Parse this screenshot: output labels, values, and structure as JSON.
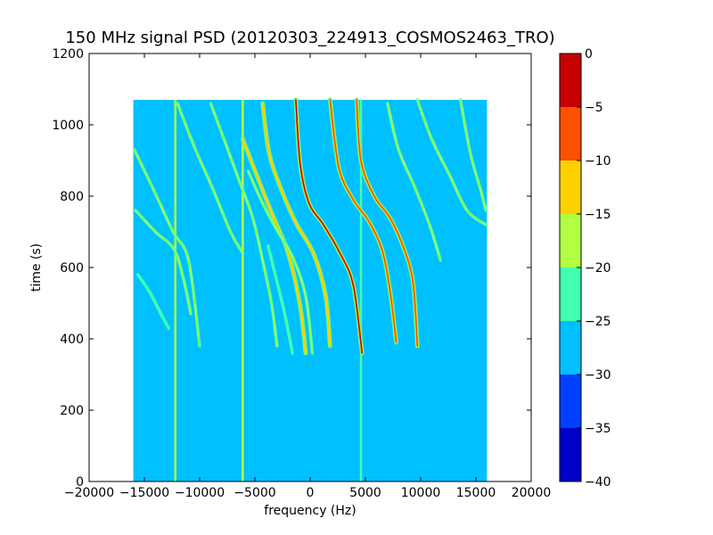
{
  "chart_data": {
    "type": "heatmap",
    "title": "150 MHz signal PSD (20120303_224913_COSMOS2463_TRO)",
    "xlabel": "frequency (Hz)",
    "ylabel": "time (s)",
    "xlim": [
      -20000,
      20000
    ],
    "ylim": [
      0,
      1200
    ],
    "x_ticks": [
      -20000,
      -15000,
      -10000,
      -5000,
      0,
      5000,
      10000,
      15000,
      20000
    ],
    "x_tick_labels": [
      "−20000",
      "−15000",
      "−10000",
      "−5000",
      "0",
      "5000",
      "10000",
      "15000",
      "20000"
    ],
    "y_ticks": [
      0,
      200,
      400,
      600,
      800,
      1000,
      1200
    ],
    "y_tick_labels": [
      "0",
      "200",
      "400",
      "600",
      "800",
      "1000",
      "1200"
    ],
    "data_extent": {
      "x": [
        -16000,
        16000
      ],
      "y": [
        0,
        1070
      ]
    },
    "background_level": -27.5,
    "colorbar": {
      "levels": [
        -40,
        -35,
        -30,
        -25,
        -20,
        -15,
        -10,
        -5,
        0
      ],
      "tick_labels": [
        "−40",
        "−35",
        "−30",
        "−25",
        "−20",
        "−15",
        "−10",
        "−5",
        "0"
      ],
      "colors": [
        "#0000c8",
        "#0040ff",
        "#00c0ff",
        "#40ffb0",
        "#b0ff40",
        "#ffd000",
        "#ff5000",
        "#c80000"
      ]
    },
    "vertical_lines": [
      {
        "freq": -12200,
        "from": 0,
        "to": 1070,
        "level": -20
      },
      {
        "freq": -6100,
        "from": 0,
        "to": 1070,
        "level": -20
      },
      {
        "freq": 4600,
        "from": 0,
        "to": 1070,
        "level": -22
      }
    ],
    "traces": [
      {
        "name": "t1",
        "points": [
          [
            -15900,
            930
          ],
          [
            -14200,
            820
          ],
          [
            -12400,
            700
          ],
          [
            -11000,
            620
          ],
          [
            -10000,
            380
          ]
        ],
        "level": -20
      },
      {
        "name": "t2",
        "points": [
          [
            -15800,
            760
          ],
          [
            -14000,
            700
          ],
          [
            -12300,
            650
          ],
          [
            -11400,
            560
          ],
          [
            -10800,
            470
          ]
        ],
        "level": -20
      },
      {
        "name": "t3",
        "points": [
          [
            -15600,
            580
          ],
          [
            -14500,
            530
          ],
          [
            -13500,
            470
          ],
          [
            -12800,
            430
          ]
        ],
        "level": -22
      },
      {
        "name": "t4",
        "points": [
          [
            -12000,
            1060
          ],
          [
            -10500,
            940
          ],
          [
            -8800,
            820
          ],
          [
            -7200,
            700
          ],
          [
            -6100,
            640
          ]
        ],
        "level": -20
      },
      {
        "name": "t5",
        "points": [
          [
            -9000,
            1060
          ],
          [
            -7800,
            960
          ],
          [
            -6500,
            850
          ],
          [
            -5200,
            740
          ],
          [
            -4300,
            620
          ],
          [
            -3500,
            500
          ],
          [
            -3000,
            380
          ]
        ],
        "level": -20
      },
      {
        "name": "t6",
        "points": [
          [
            -6100,
            960
          ],
          [
            -4600,
            840
          ],
          [
            -3300,
            740
          ],
          [
            -2200,
            660
          ],
          [
            -1400,
            570
          ],
          [
            -800,
            470
          ],
          [
            -400,
            360
          ]
        ],
        "level": -15
      },
      {
        "name": "t7",
        "points": [
          [
            -4300,
            1060
          ],
          [
            -3700,
            920
          ],
          [
            -2500,
            810
          ],
          [
            -1200,
            720
          ],
          [
            300,
            640
          ],
          [
            1400,
            520
          ],
          [
            1800,
            380
          ]
        ],
        "level": -15
      },
      {
        "name": "t8",
        "points": [
          [
            -1300,
            1070
          ],
          [
            -900,
            890
          ],
          [
            -100,
            780
          ],
          [
            1200,
            720
          ],
          [
            2700,
            640
          ],
          [
            3900,
            550
          ],
          [
            4700,
            360
          ]
        ],
        "level": -5
      },
      {
        "name": "t9",
        "points": [
          [
            -5600,
            870
          ],
          [
            -4300,
            780
          ],
          [
            -3100,
            710
          ],
          [
            -1600,
            630
          ],
          [
            -400,
            520
          ],
          [
            200,
            360
          ]
        ],
        "level": -20
      },
      {
        "name": "t10",
        "points": [
          [
            1800,
            1070
          ],
          [
            2600,
            880
          ],
          [
            3900,
            790
          ],
          [
            5300,
            730
          ],
          [
            6500,
            650
          ],
          [
            7200,
            540
          ],
          [
            7800,
            390
          ]
        ],
        "level": -10
      },
      {
        "name": "t11",
        "points": [
          [
            4200,
            1070
          ],
          [
            4600,
            900
          ],
          [
            5800,
            800
          ],
          [
            7200,
            740
          ],
          [
            8400,
            660
          ],
          [
            9300,
            560
          ],
          [
            9700,
            380
          ]
        ],
        "level": -10
      },
      {
        "name": "t12",
        "points": [
          [
            7000,
            1060
          ],
          [
            8000,
            930
          ],
          [
            9400,
            830
          ],
          [
            10800,
            720
          ],
          [
            11800,
            620
          ]
        ],
        "level": -20
      },
      {
        "name": "t13",
        "points": [
          [
            9700,
            1070
          ],
          [
            11000,
            960
          ],
          [
            12600,
            860
          ],
          [
            14200,
            760
          ],
          [
            15900,
            720
          ]
        ],
        "level": -20
      },
      {
        "name": "t14",
        "points": [
          [
            13600,
            1070
          ],
          [
            14500,
            920
          ],
          [
            15400,
            820
          ],
          [
            15900,
            760
          ]
        ],
        "level": -20
      },
      {
        "name": "t15",
        "points": [
          [
            -3800,
            660
          ],
          [
            -3000,
            560
          ],
          [
            -2300,
            470
          ],
          [
            -1600,
            360
          ]
        ],
        "level": -22
      }
    ]
  }
}
